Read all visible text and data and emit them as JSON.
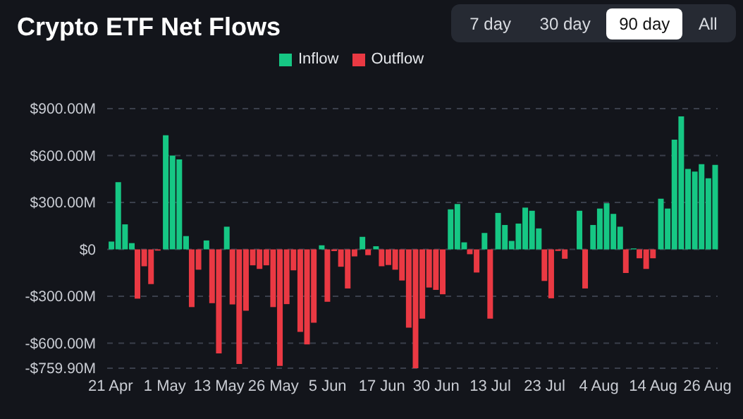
{
  "chart_data": {
    "type": "bar",
    "title": "Crypto ETF Net Flows",
    "annotations": [
      "7 day",
      "30 day",
      "90 day",
      "All"
    ],
    "categories": [
      "21 Apr",
      null,
      null,
      null,
      null,
      null,
      null,
      null,
      "1 May",
      null,
      null,
      null,
      null,
      null,
      null,
      null,
      "13 May",
      null,
      null,
      null,
      null,
      null,
      null,
      null,
      "26 May",
      null,
      null,
      null,
      null,
      null,
      null,
      null,
      "5 Jun",
      null,
      null,
      null,
      null,
      null,
      null,
      null,
      "17 Jun",
      null,
      null,
      null,
      null,
      null,
      null,
      null,
      "30 Jun",
      null,
      null,
      null,
      null,
      null,
      null,
      null,
      "13 Jul",
      null,
      null,
      null,
      null,
      null,
      null,
      null,
      "23 Jul",
      null,
      null,
      null,
      null,
      null,
      null,
      null,
      "4 Aug",
      null,
      null,
      null,
      null,
      null,
      null,
      null,
      "14 Aug",
      null,
      null,
      null,
      null,
      null,
      null,
      null,
      "26 Aug",
      null
    ],
    "series": [
      {
        "name": "Inflow",
        "color": "#16c784",
        "values": [
          50,
          430,
          160,
          40,
          null,
          null,
          null,
          null,
          730,
          600,
          575,
          85,
          null,
          null,
          57,
          null,
          null,
          145,
          null,
          null,
          null,
          null,
          null,
          null,
          null,
          null,
          null,
          null,
          null,
          null,
          null,
          26,
          null,
          null,
          null,
          null,
          null,
          80,
          null,
          20,
          null,
          null,
          null,
          null,
          null,
          null,
          null,
          null,
          null,
          null,
          256,
          290,
          45,
          null,
          null,
          105,
          null,
          233,
          156,
          54,
          165,
          267,
          247,
          134,
          null,
          null,
          null,
          null,
          null,
          247,
          null,
          156,
          261,
          295,
          227,
          145,
          null,
          6,
          null,
          null,
          null,
          324,
          261,
          702,
          850,
          514,
          497,
          545,
          455,
          540
        ]
      },
      {
        "name": "Outflow",
        "color": "#ea3943",
        "values": [
          null,
          null,
          null,
          null,
          -315,
          -108,
          -222,
          -8,
          null,
          null,
          null,
          null,
          -369,
          -130,
          null,
          -344,
          -665,
          null,
          -352,
          -733,
          -392,
          -102,
          -125,
          -102,
          -369,
          -745,
          -350,
          -134,
          -528,
          -608,
          -469,
          null,
          -335,
          -11,
          -111,
          -250,
          -45,
          null,
          -37,
          null,
          -108,
          -100,
          -130,
          -199,
          -500,
          -759.9,
          -443,
          -244,
          -259,
          -287,
          null,
          null,
          null,
          -31,
          -148,
          null,
          -443,
          null,
          null,
          null,
          null,
          null,
          null,
          null,
          -202,
          -313,
          -10,
          -60,
          null,
          null,
          -250,
          null,
          null,
          null,
          null,
          null,
          -151,
          null,
          -57,
          -125,
          -57,
          null,
          null,
          null,
          null,
          null,
          null,
          null,
          null,
          null
        ]
      }
    ],
    "ylim": [
      -759.9,
      900
    ],
    "yticks": [
      {
        "value": 900,
        "label": "$900.00M"
      },
      {
        "value": 600,
        "label": "$600.00M"
      },
      {
        "value": 300,
        "label": "$300.00M"
      },
      {
        "value": 0,
        "label": "$0"
      },
      {
        "value": -300,
        "label": "-$300.00M"
      },
      {
        "value": -600,
        "label": "-$600.00M"
      },
      {
        "value": -759.9,
        "label": "-$759.90M"
      }
    ],
    "grid": "y",
    "legend": "top"
  }
}
